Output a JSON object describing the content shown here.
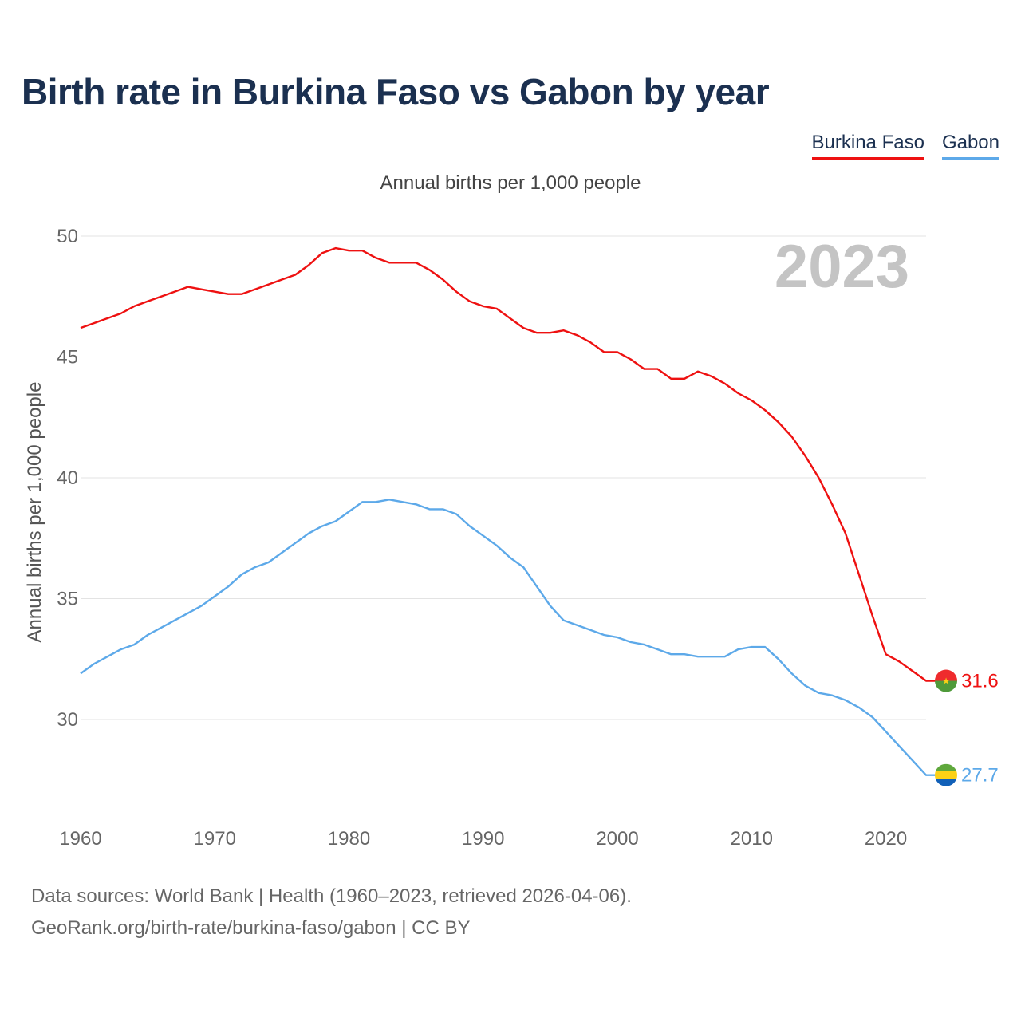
{
  "title": "Birth rate in Burkina Faso vs Gabon by year",
  "legend": [
    {
      "name": "Burkina Faso",
      "color": "#ee1111"
    },
    {
      "name": "Gabon",
      "color": "#5da9e9"
    }
  ],
  "subtitle": "Annual births per 1,000 people",
  "year_label": "2023",
  "footer": {
    "line1": "Data sources: World Bank | Health (1960–2023, retrieved 2026-04-06).",
    "line2": "GeoRank.org/birth-rate/burkina-faso/gabon | CC BY"
  },
  "chart_data": {
    "type": "line",
    "title": "Birth rate in Burkina Faso vs Gabon by year",
    "xlabel": "",
    "ylabel": "Annual births per 1,000 people",
    "xlim": [
      1960,
      2023
    ],
    "ylim": [
      27,
      50
    ],
    "x_ticks": [
      1960,
      1970,
      1980,
      1990,
      2000,
      2010,
      2020
    ],
    "y_ticks": [
      30,
      35,
      40,
      45,
      50
    ],
    "grid": true,
    "legend_position": "top-right",
    "x": [
      1960,
      1961,
      1962,
      1963,
      1964,
      1965,
      1966,
      1967,
      1968,
      1969,
      1970,
      1971,
      1972,
      1973,
      1974,
      1975,
      1976,
      1977,
      1978,
      1979,
      1980,
      1981,
      1982,
      1983,
      1984,
      1985,
      1986,
      1987,
      1988,
      1989,
      1990,
      1991,
      1992,
      1993,
      1994,
      1995,
      1996,
      1997,
      1998,
      1999,
      2000,
      2001,
      2002,
      2003,
      2004,
      2005,
      2006,
      2007,
      2008,
      2009,
      2010,
      2011,
      2012,
      2013,
      2014,
      2015,
      2016,
      2017,
      2018,
      2019,
      2020,
      2021,
      2022,
      2023
    ],
    "series": [
      {
        "name": "Burkina Faso",
        "color": "#ee1111",
        "end_label": "31.6",
        "values": [
          46.2,
          46.4,
          46.6,
          46.8,
          47.1,
          47.3,
          47.5,
          47.7,
          47.9,
          47.8,
          47.7,
          47.6,
          47.6,
          47.8,
          48.0,
          48.2,
          48.4,
          48.8,
          49.3,
          49.5,
          49.4,
          49.4,
          49.1,
          48.9,
          48.9,
          48.9,
          48.6,
          48.2,
          47.7,
          47.3,
          47.1,
          47.0,
          46.6,
          46.2,
          46.0,
          46.0,
          46.1,
          45.9,
          45.6,
          45.2,
          45.2,
          44.9,
          44.5,
          44.5,
          44.1,
          44.1,
          44.4,
          44.2,
          43.9,
          43.5,
          43.2,
          42.8,
          42.3,
          41.7,
          40.9,
          40.0,
          38.9,
          37.7,
          36.0,
          34.3,
          32.7,
          32.4,
          32.0,
          31.6
        ]
      },
      {
        "name": "Gabon",
        "color": "#5da9e9",
        "end_label": "27.7",
        "values": [
          31.9,
          32.3,
          32.6,
          32.9,
          33.1,
          33.5,
          33.8,
          34.1,
          34.4,
          34.7,
          35.1,
          35.5,
          36.0,
          36.3,
          36.5,
          36.9,
          37.3,
          37.7,
          38.0,
          38.2,
          38.6,
          39.0,
          39.0,
          39.1,
          39.0,
          38.9,
          38.7,
          38.7,
          38.5,
          38.0,
          37.6,
          37.2,
          36.7,
          36.3,
          35.5,
          34.7,
          34.1,
          33.9,
          33.7,
          33.5,
          33.4,
          33.2,
          33.1,
          32.9,
          32.7,
          32.7,
          32.6,
          32.6,
          32.6,
          32.9,
          33.0,
          33.0,
          32.5,
          31.9,
          31.4,
          31.1,
          31.0,
          30.8,
          30.5,
          30.1,
          29.5,
          28.9,
          28.3,
          27.7
        ]
      }
    ]
  }
}
